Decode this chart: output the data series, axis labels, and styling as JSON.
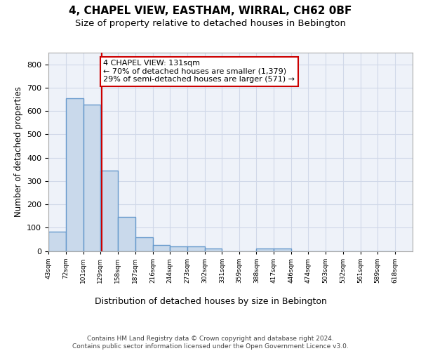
{
  "title1": "4, CHAPEL VIEW, EASTHAM, WIRRAL, CH62 0BF",
  "title2": "Size of property relative to detached houses in Bebington",
  "xlabel": "Distribution of detached houses by size in Bebington",
  "ylabel": "Number of detached properties",
  "bar_left_edges": [
    43,
    72,
    101,
    129,
    158,
    187,
    216,
    244,
    273,
    302,
    331,
    359,
    388,
    417,
    446,
    474,
    503,
    532,
    561,
    589
  ],
  "bar_widths": [
    29,
    29,
    28,
    29,
    29,
    29,
    28,
    29,
    29,
    29,
    28,
    29,
    29,
    29,
    28,
    29,
    29,
    29,
    28,
    29
  ],
  "bar_heights": [
    83,
    655,
    627,
    345,
    145,
    60,
    25,
    20,
    20,
    10,
    0,
    0,
    10,
    10,
    0,
    0,
    0,
    0,
    0,
    0
  ],
  "bar_color": "#c9d9eb",
  "bar_edge_color": "#6699cc",
  "bar_edge_width": 1.0,
  "property_line_x": 131,
  "property_line_color": "#cc0000",
  "annotation_text": "4 CHAPEL VIEW: 131sqm\n← 70% of detached houses are smaller (1,379)\n29% of semi-detached houses are larger (571) →",
  "annotation_box_color": "#ffffff",
  "annotation_box_edge": "#cc0000",
  "ylim": [
    0,
    850
  ],
  "yticks": [
    0,
    100,
    200,
    300,
    400,
    500,
    600,
    700,
    800
  ],
  "tick_labels": [
    "43sqm",
    "72sqm",
    "101sqm",
    "129sqm",
    "158sqm",
    "187sqm",
    "216sqm",
    "244sqm",
    "273sqm",
    "302sqm",
    "331sqm",
    "359sqm",
    "388sqm",
    "417sqm",
    "446sqm",
    "474sqm",
    "503sqm",
    "532sqm",
    "561sqm",
    "589sqm",
    "618sqm"
  ],
  "grid_color": "#d0d8e8",
  "background_color": "#eef2f9",
  "footer_text": "Contains HM Land Registry data © Crown copyright and database right 2024.\nContains public sector information licensed under the Open Government Licence v3.0.",
  "title1_fontsize": 11,
  "title2_fontsize": 9.5,
  "xlabel_fontsize": 9,
  "ylabel_fontsize": 8.5,
  "annotation_fontsize": 8,
  "footer_fontsize": 6.5
}
